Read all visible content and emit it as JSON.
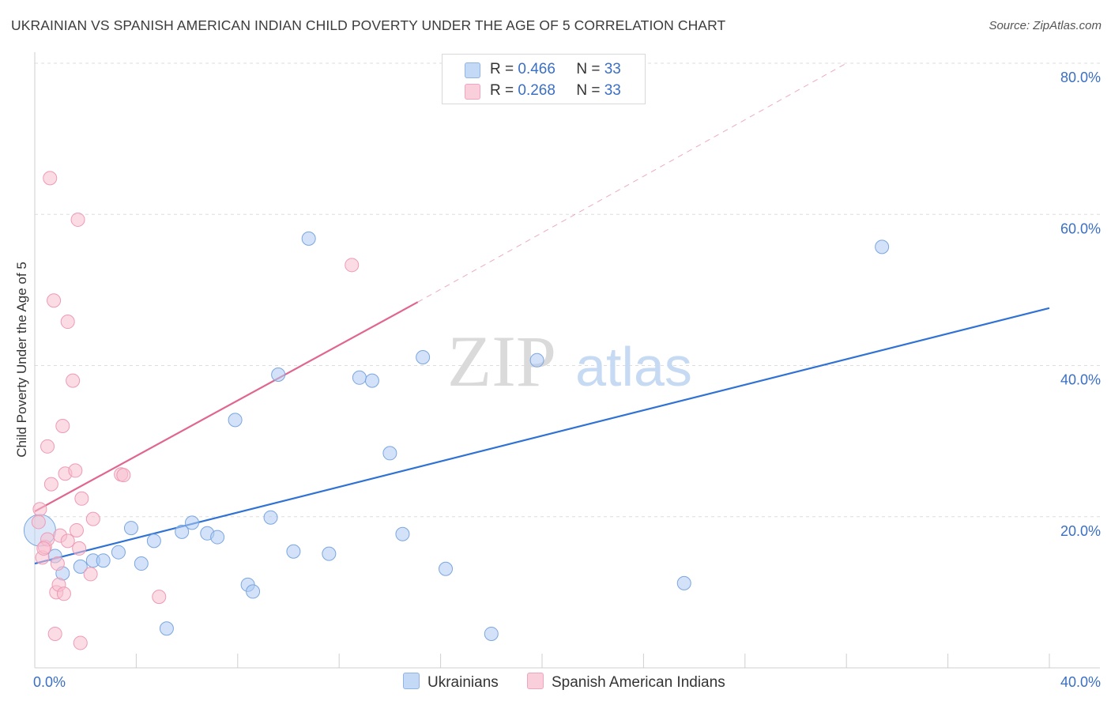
{
  "title": "UKRAINIAN VS SPANISH AMERICAN INDIAN CHILD POVERTY UNDER THE AGE OF 5 CORRELATION CHART",
  "source": "Source: ZipAtlas.com",
  "watermark": {
    "zip": "ZIP",
    "atlas": "atlas"
  },
  "legend": {
    "r_label": "R =",
    "n_label": "N =",
    "rows": [
      {
        "r": "0.466",
        "n": "33",
        "color": "#aecbf2"
      },
      {
        "r": "0.268",
        "n": "33",
        "color": "#f7bfd0"
      }
    ]
  },
  "bottom_legend": [
    "Ukrainians",
    "Spanish American Indians"
  ],
  "chart_data": {
    "type": "scatter",
    "title": "UKRAINIAN VS SPANISH AMERICAN INDIAN CHILD POVERTY UNDER THE AGE OF 5 CORRELATION CHART",
    "xlabel": "",
    "ylabel": "Child Poverty Under the Age of 5",
    "xlim": [
      0,
      40
    ],
    "ylim": [
      0,
      80
    ],
    "x_tick_labels": [
      "0.0%",
      "40.0%"
    ],
    "y_ticks": [
      20,
      40,
      60,
      80
    ],
    "y_tick_labels": [
      "20.0%",
      "40.0%",
      "60.0%",
      "80.0%"
    ],
    "grid": true,
    "series": [
      {
        "name": "Ukrainians",
        "color": "#aecbf2",
        "stroke": "#7aa6e0",
        "line_color": "#2f72d4",
        "points": [
          [
            0.2,
            18.2
          ],
          [
            0.8,
            14.8
          ],
          [
            1.1,
            12.5
          ],
          [
            1.8,
            13.4
          ],
          [
            2.3,
            14.2
          ],
          [
            2.7,
            14.2
          ],
          [
            3.3,
            15.3
          ],
          [
            3.8,
            18.5
          ],
          [
            4.2,
            13.8
          ],
          [
            4.7,
            16.8
          ],
          [
            5.2,
            5.2
          ],
          [
            5.8,
            18.0
          ],
          [
            6.2,
            19.2
          ],
          [
            6.8,
            17.8
          ],
          [
            7.2,
            17.3
          ],
          [
            7.9,
            32.8
          ],
          [
            8.4,
            11.0
          ],
          [
            8.6,
            10.1
          ],
          [
            9.3,
            19.9
          ],
          [
            9.6,
            38.8
          ],
          [
            10.2,
            15.4
          ],
          [
            10.8,
            56.8
          ],
          [
            11.6,
            15.1
          ],
          [
            12.8,
            38.4
          ],
          [
            13.3,
            38.0
          ],
          [
            14.0,
            28.4
          ],
          [
            14.5,
            17.7
          ],
          [
            15.3,
            41.1
          ],
          [
            16.2,
            13.1
          ],
          [
            18.0,
            4.5
          ],
          [
            19.8,
            40.7
          ],
          [
            25.6,
            11.2
          ],
          [
            33.4,
            55.7
          ]
        ],
        "trend": {
          "x0": 0,
          "y0": 13.8,
          "x1": 40,
          "y1": 47.6
        }
      },
      {
        "name": "Spanish American Indians",
        "color": "#f7bfd0",
        "stroke": "#ee9ab5",
        "line_color": "#e0668e",
        "points": [
          [
            0.15,
            19.3
          ],
          [
            0.2,
            21.0
          ],
          [
            0.3,
            14.6
          ],
          [
            0.4,
            16.0
          ],
          [
            0.5,
            17.0
          ],
          [
            0.5,
            29.3
          ],
          [
            0.6,
            64.8
          ],
          [
            0.65,
            24.3
          ],
          [
            0.75,
            48.6
          ],
          [
            0.8,
            4.5
          ],
          [
            0.85,
            10.0
          ],
          [
            0.9,
            13.8
          ],
          [
            0.95,
            11.0
          ],
          [
            1.0,
            17.5
          ],
          [
            1.1,
            32.0
          ],
          [
            1.15,
            9.8
          ],
          [
            1.2,
            25.7
          ],
          [
            1.3,
            16.8
          ],
          [
            1.3,
            45.8
          ],
          [
            1.5,
            38.0
          ],
          [
            1.6,
            26.1
          ],
          [
            1.65,
            18.2
          ],
          [
            1.7,
            59.3
          ],
          [
            1.75,
            15.8
          ],
          [
            1.8,
            3.3
          ],
          [
            1.85,
            22.4
          ],
          [
            2.2,
            12.4
          ],
          [
            2.3,
            19.7
          ],
          [
            3.4,
            25.6
          ],
          [
            3.5,
            25.5
          ],
          [
            4.9,
            9.4
          ],
          [
            12.5,
            53.3
          ],
          [
            0.35,
            15.8
          ]
        ],
        "trend": {
          "x0": 0,
          "y0": 20.7,
          "x1": 15.1,
          "y1": 48.4
        },
        "trend_extension": {
          "x0": 15.1,
          "y0": 48.4,
          "x1": 32.0,
          "y1": 80.0
        }
      }
    ]
  }
}
